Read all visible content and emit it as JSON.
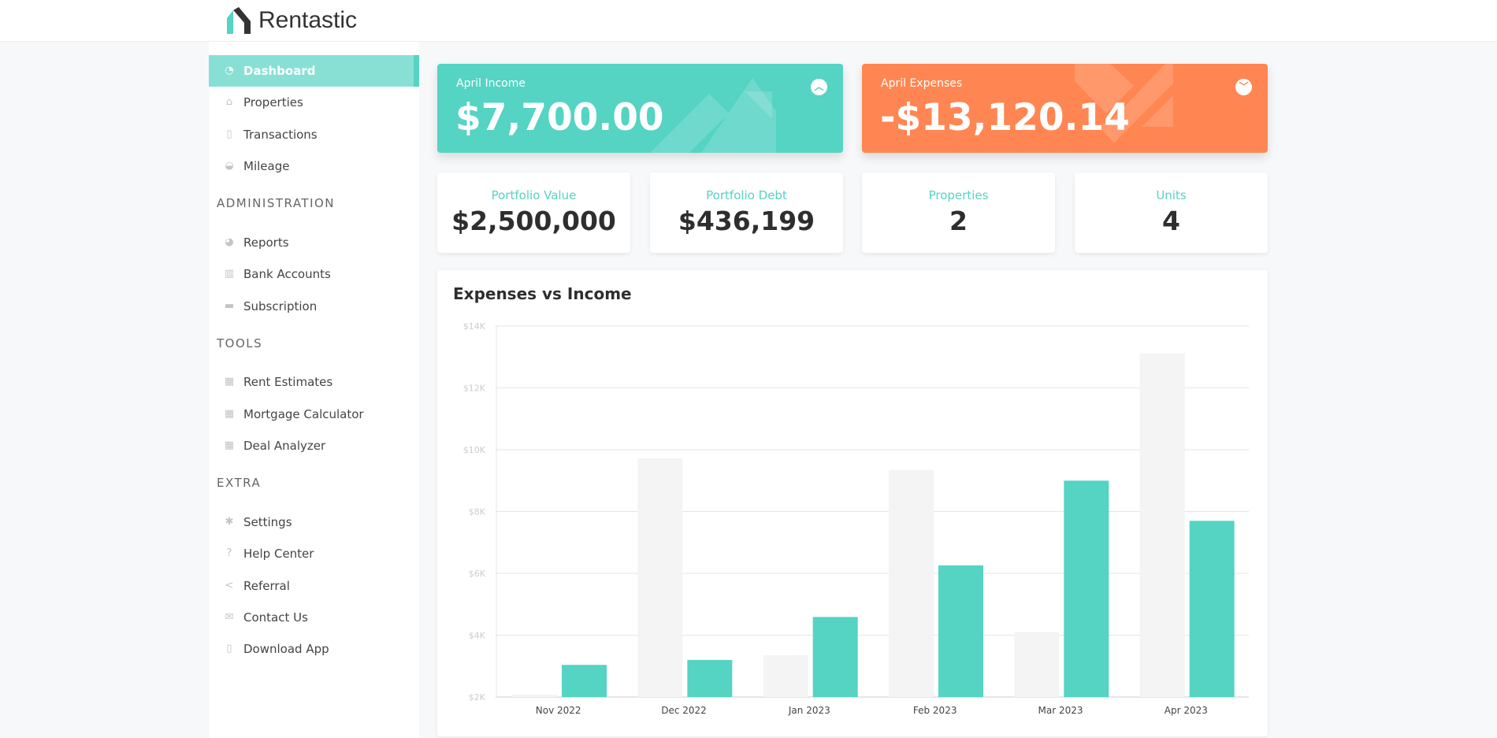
{
  "header": {
    "logo_text": "Rentastic"
  },
  "sidebar": {
    "items": [
      {
        "label": "Dashboard",
        "icon": "dashboard-icon",
        "active": true
      },
      {
        "label": "Properties",
        "icon": "home-icon"
      },
      {
        "label": "Transactions",
        "icon": "file-icon"
      },
      {
        "label": "Mileage",
        "icon": "car-icon"
      }
    ],
    "sections": [
      {
        "title": "ADMINISTRATION",
        "items": [
          {
            "label": "Reports",
            "icon": "pie-chart-icon"
          },
          {
            "label": "Bank Accounts",
            "icon": "bank-icon"
          },
          {
            "label": "Subscription",
            "icon": "credit-card-icon"
          }
        ]
      },
      {
        "title": "TOOLS",
        "items": [
          {
            "label": "Rent Estimates",
            "icon": "calculator-icon"
          },
          {
            "label": "Mortgage Calculator",
            "icon": "calculator-icon"
          },
          {
            "label": "Deal Analyzer",
            "icon": "calculator-icon"
          }
        ]
      },
      {
        "title": "EXTRA",
        "items": [
          {
            "label": "Settings",
            "icon": "gear-icon"
          },
          {
            "label": "Help Center",
            "icon": "question-icon"
          },
          {
            "label": "Referral",
            "icon": "share-icon"
          },
          {
            "label": "Contact Us",
            "icon": "envelope-icon"
          },
          {
            "label": "Download App",
            "icon": "mobile-icon"
          }
        ]
      }
    ]
  },
  "income": {
    "label": "April Income",
    "value": "$7,700.00",
    "color": "#55d3c3",
    "icon": "chevron-up-circle-icon"
  },
  "expenses": {
    "label": "April Expenses",
    "value": "-$13,120.14",
    "color": "#ff8652",
    "icon": "chevron-down-circle-icon"
  },
  "stats": [
    {
      "label": "Portfolio Value",
      "value": "$2,500,000"
    },
    {
      "label": "Portfolio Debt",
      "value": "$436,199"
    },
    {
      "label": "Properties",
      "value": "2"
    },
    {
      "label": "Units",
      "value": "4"
    }
  ],
  "chart_data": {
    "type": "bar",
    "title": "Expenses vs Income",
    "categories": [
      "Nov 2022",
      "Dec 2022",
      "Jan 2023",
      "Feb 2023",
      "Mar 2023",
      "Apr 2023"
    ],
    "series": [
      {
        "values": [
          2080,
          9720,
          3350,
          9350,
          4100,
          13120
        ],
        "color": "#f4f4f4"
      },
      {
        "values": [
          3040,
          3200,
          4590,
          6260,
          9000,
          7700
        ],
        "color": "#55d3c3"
      }
    ],
    "ylim": [
      2000,
      14000
    ],
    "yticks": [
      "$2K",
      "$4K",
      "$6K",
      "$8K",
      "$10K",
      "$12K",
      "$14K"
    ],
    "grid": true
  }
}
